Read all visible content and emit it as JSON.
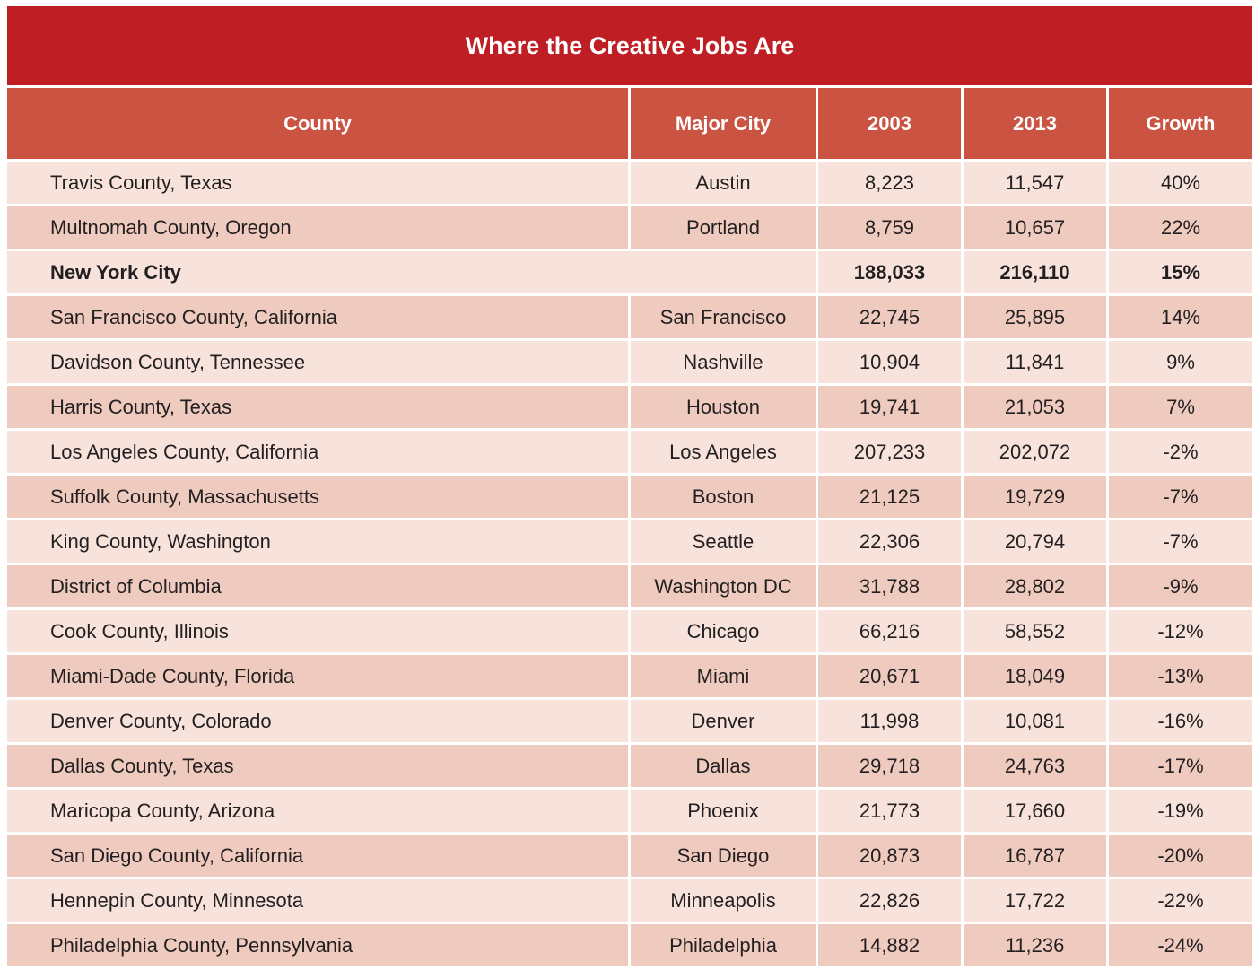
{
  "title": "Where the Creative Jobs Are",
  "colors": {
    "title_bg": "#be1e24",
    "header_bg": "#cb5342",
    "row_light": "#f8e3dc",
    "row_dark": "#eecbbe"
  },
  "chart_data": {
    "type": "table",
    "title": "Where the Creative Jobs Are",
    "columns": [
      "County",
      "Major City",
      "2003",
      "2013",
      "Growth"
    ],
    "rows": [
      [
        "Travis County, Texas",
        "Austin",
        "8,223",
        "11,547",
        "40%"
      ],
      [
        "Multnomah County, Oregon",
        "Portland",
        "8,759",
        "10,657",
        "22%"
      ],
      [
        "New York City",
        "",
        "188,033",
        "216,110",
        "15%"
      ],
      [
        "San Francisco County, California",
        "San Francisco",
        "22,745",
        "25,895",
        "14%"
      ],
      [
        "Davidson County, Tennessee",
        "Nashville",
        "10,904",
        "11,841",
        "9%"
      ],
      [
        "Harris County, Texas",
        "Houston",
        "19,741",
        "21,053",
        "7%"
      ],
      [
        "Los Angeles County, California",
        "Los Angeles",
        "207,233",
        "202,072",
        "-2%"
      ],
      [
        "Suffolk County, Massachusetts",
        "Boston",
        "21,125",
        "19,729",
        "-7%"
      ],
      [
        "King County, Washington",
        "Seattle",
        "22,306",
        "20,794",
        "-7%"
      ],
      [
        "District of Columbia",
        "Washington DC",
        "31,788",
        "28,802",
        "-9%"
      ],
      [
        "Cook County, Illinois",
        "Chicago",
        "66,216",
        "58,552",
        "-12%"
      ],
      [
        "Miami-Dade County, Florida",
        "Miami",
        "20,671",
        "18,049",
        "-13%"
      ],
      [
        "Denver County, Colorado",
        "Denver",
        "11,998",
        "10,081",
        "-16%"
      ],
      [
        "Dallas County, Texas",
        "Dallas",
        "29,718",
        "24,763",
        "-17%"
      ],
      [
        "Maricopa County, Arizona",
        "Phoenix",
        "21,773",
        "17,660",
        "-19%"
      ],
      [
        "San Diego County, California",
        "San Diego",
        "20,873",
        "16,787",
        "-20%"
      ],
      [
        "Hennepin County, Minnesota",
        "Minneapolis",
        "22,826",
        "17,722",
        "-22%"
      ],
      [
        "Philadelphia County, Pennsylvania",
        "Philadelphia",
        "14,882",
        "11,236",
        "-24%"
      ]
    ],
    "highlight_row": 2
  }
}
